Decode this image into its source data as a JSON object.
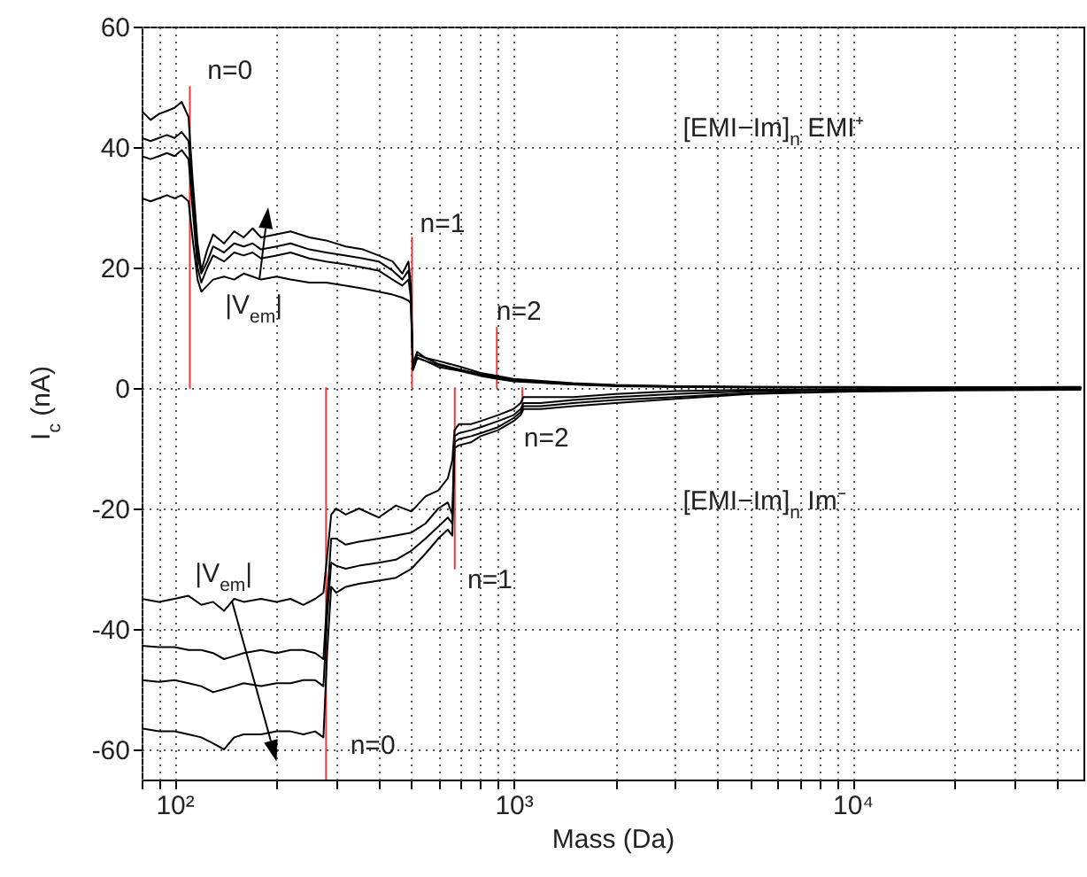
{
  "chart_data": {
    "type": "line",
    "xlabel": "Mass (Da)",
    "ylabel": "I$_{c}$ (nA)",
    "log": "x",
    "grid": true,
    "xlim": [
      80,
      48000
    ],
    "ylim": [
      -65,
      60
    ],
    "xticks": [
      {
        "value": 80,
        "label": null
      },
      {
        "value": 90,
        "label": null
      },
      {
        "value": 100,
        "label": "10²"
      },
      {
        "value": 200,
        "label": null
      },
      {
        "value": 300,
        "label": null
      },
      {
        "value": 400,
        "label": null
      },
      {
        "value": 500,
        "label": null
      },
      {
        "value": 600,
        "label": null
      },
      {
        "value": 700,
        "label": null
      },
      {
        "value": 800,
        "label": null
      },
      {
        "value": 900,
        "label": null
      },
      {
        "value": 1000,
        "label": "10³"
      },
      {
        "value": 2000,
        "label": null
      },
      {
        "value": 3000,
        "label": null
      },
      {
        "value": 4000,
        "label": null
      },
      {
        "value": 5000,
        "label": null
      },
      {
        "value": 6000,
        "label": null
      },
      {
        "value": 7000,
        "label": null
      },
      {
        "value": 8000,
        "label": null
      },
      {
        "value": 9000,
        "label": null
      },
      {
        "value": 10000,
        "label": "10⁴"
      },
      {
        "value": 20000,
        "label": null
      },
      {
        "value": 30000,
        "label": null
      },
      {
        "value": 40000,
        "label": null
      }
    ],
    "yticks": [
      -60,
      -40,
      -20,
      0,
      20,
      40,
      60
    ],
    "series": [
      {
        "color": "#f03a3a",
        "x": [
          111,
          111
        ],
        "values": [
          0,
          50
        ]
      },
      {
        "color": "#f03a3a",
        "x": [
          502,
          502
        ],
        "values": [
          0,
          25
        ]
      },
      {
        "color": "#f03a3a",
        "x": [
          893,
          893
        ],
        "values": [
          0,
          10
        ]
      },
      {
        "color": "#f03a3a",
        "x": [
          280,
          280
        ],
        "values": [
          0,
          -65
        ]
      },
      {
        "color": "#f03a3a",
        "x": [
          671,
          671
        ],
        "values": [
          0,
          -30
        ]
      },
      {
        "color": "#f03a3a",
        "x": [
          1062,
          1062
        ],
        "values": [
          0,
          -3.5
        ]
      },
      {
        "color": "#000000",
        "x": [
          80,
          85,
          90,
          95,
          100,
          105,
          110,
          113,
          117,
          120,
          125,
          130,
          140,
          150,
          160,
          170,
          180,
          200,
          220,
          250,
          280,
          320,
          360,
          400,
          440,
          470,
          490,
          498,
          505,
          520,
          550,
          600,
          700,
          800,
          900,
          1000,
          1500,
          2000,
          3000,
          5000,
          10000,
          20000,
          47000
        ],
        "values": [
          46,
          44.5,
          45.5,
          46,
          46.5,
          47.5,
          45,
          35,
          24,
          19.5,
          23,
          25.5,
          24,
          26,
          25,
          26.5,
          25,
          25.5,
          26,
          25,
          24.5,
          23.5,
          23,
          22,
          21,
          19,
          21,
          17,
          4,
          6,
          5,
          4.5,
          3.5,
          2.5,
          2,
          1.5,
          0.8,
          0.5,
          0.3,
          0.2,
          0.2,
          0.1,
          0.2
        ]
      },
      {
        "color": "#000000",
        "x": [
          80,
          85,
          90,
          95,
          100,
          105,
          110,
          113,
          117,
          120,
          125,
          130,
          140,
          150,
          160,
          170,
          180,
          200,
          220,
          250,
          280,
          320,
          360,
          400,
          440,
          470,
          490,
          498,
          505,
          520,
          550,
          600,
          700,
          800,
          900,
          1000,
          1500,
          2000,
          3000,
          5000,
          10000,
          20000,
          47000
        ],
        "values": [
          41.5,
          41,
          41.5,
          42,
          41.5,
          42.5,
          41,
          33,
          22,
          19,
          21,
          23.5,
          22.5,
          24,
          23.5,
          24,
          23,
          23.5,
          24,
          23,
          22.5,
          22,
          21.5,
          21,
          19.5,
          18,
          19.5,
          16,
          3.5,
          5.5,
          5,
          4,
          3,
          2.3,
          1.8,
          1.3,
          0.7,
          0.4,
          0.3,
          0.2,
          0.1,
          0.1,
          0.1
        ]
      },
      {
        "color": "#000000",
        "x": [
          80,
          85,
          90,
          95,
          100,
          105,
          110,
          113,
          117,
          120,
          125,
          130,
          140,
          150,
          160,
          170,
          180,
          200,
          220,
          250,
          280,
          320,
          360,
          400,
          440,
          470,
          490,
          498,
          505,
          520,
          550,
          600,
          700,
          800,
          900,
          1000,
          1500,
          2000,
          3000,
          5000,
          10000,
          20000,
          47000
        ],
        "values": [
          38.5,
          38,
          38.5,
          39,
          38.5,
          39.5,
          38,
          30,
          20,
          17.5,
          20,
          22,
          21,
          22.5,
          22,
          22.5,
          21.5,
          22,
          22.5,
          21.5,
          21,
          20.5,
          20,
          19.5,
          18,
          17,
          18,
          15,
          3,
          5,
          4.5,
          3.8,
          3,
          2.2,
          1.6,
          1.2,
          0.6,
          0.4,
          0.2,
          0.1,
          0.1,
          0,
          0.1
        ]
      },
      {
        "color": "#000000",
        "x": [
          80,
          85,
          90,
          95,
          100,
          105,
          110,
          113,
          117,
          120,
          125,
          130,
          140,
          150,
          160,
          170,
          180,
          200,
          220,
          250,
          280,
          320,
          360,
          400,
          440,
          470,
          490,
          498,
          505,
          520,
          550,
          600,
          700,
          800,
          900,
          1000,
          1500,
          2000,
          3000,
          5000,
          10000,
          20000,
          47000
        ],
        "values": [
          31.5,
          31,
          31.5,
          32,
          31.5,
          32,
          31,
          25,
          18,
          16,
          17,
          18,
          18.5,
          18,
          19,
          18.5,
          18,
          18.5,
          18,
          17.5,
          17.5,
          17,
          16.5,
          16,
          15.5,
          15,
          14.5,
          14,
          3,
          5,
          4.5,
          3.5,
          2.8,
          2,
          1.5,
          1.1,
          0.6,
          0.3,
          0.2,
          0.1,
          0.1,
          0,
          0
        ]
      },
      {
        "color": "#000000",
        "x": [
          80,
          90,
          100,
          110,
          120,
          130,
          140,
          150,
          160,
          180,
          200,
          220,
          240,
          260,
          275,
          282,
          290,
          300,
          320,
          350,
          400,
          450,
          500,
          550,
          600,
          640,
          660,
          670,
          690,
          750,
          800,
          900,
          1000,
          1050,
          1070,
          1200,
          1500,
          2000,
          3000,
          5000,
          10000,
          20000,
          47000
        ],
        "values": [
          -35,
          -35.5,
          -35,
          -34.5,
          -36,
          -35.5,
          -37,
          -35,
          -35.5,
          -35,
          -35.5,
          -35,
          -36,
          -35,
          -34,
          -28,
          -21,
          -20,
          -21,
          -20,
          -21.5,
          -19.5,
          -20.5,
          -18,
          -17,
          -15,
          -12,
          -7,
          -6,
          -6,
          -5.5,
          -4.5,
          -3.5,
          -2.5,
          -1.5,
          -1.5,
          -1.5,
          -1,
          -0.5,
          -0.3,
          -0.2,
          -0.1,
          0
        ]
      },
      {
        "color": "#000000",
        "x": [
          80,
          90,
          100,
          110,
          120,
          130,
          140,
          150,
          160,
          180,
          200,
          220,
          240,
          260,
          275,
          282,
          290,
          300,
          320,
          350,
          400,
          450,
          500,
          550,
          600,
          640,
          660,
          670,
          690,
          750,
          800,
          900,
          1000,
          1050,
          1070,
          1200,
          1500,
          2000,
          3000,
          5000,
          10000,
          20000,
          47000
        ],
        "values": [
          -42.8,
          -43,
          -43,
          -43.5,
          -43.5,
          -44,
          -45,
          -44.5,
          -44,
          -43.5,
          -44,
          -43.5,
          -43.5,
          -44,
          -45,
          -35,
          -25,
          -25,
          -26,
          -25.5,
          -25,
          -24.5,
          -24,
          -22.5,
          -20,
          -19,
          -21,
          -8,
          -7.5,
          -7,
          -6.5,
          -5.5,
          -4.5,
          -3.5,
          -2.5,
          -2.5,
          -2,
          -1.5,
          -1,
          -0.5,
          -0.3,
          -0.2,
          -0.1
        ]
      },
      {
        "color": "#000000",
        "x": [
          80,
          90,
          100,
          110,
          120,
          130,
          140,
          150,
          160,
          180,
          200,
          220,
          240,
          260,
          275,
          282,
          290,
          300,
          320,
          350,
          400,
          450,
          500,
          550,
          600,
          640,
          660,
          670,
          690,
          750,
          800,
          900,
          1000,
          1050,
          1070,
          1200,
          1500,
          2000,
          3000,
          5000,
          10000,
          20000,
          47000
        ],
        "values": [
          -48.5,
          -48.8,
          -48.5,
          -49,
          -49.5,
          -50.5,
          -50,
          -49.5,
          -49,
          -49.5,
          -49,
          -49,
          -48.5,
          -48.5,
          -49.5,
          -38,
          -29,
          -29.5,
          -30,
          -29.5,
          -29,
          -28.5,
          -27,
          -25,
          -23,
          -21.5,
          -22.5,
          -9,
          -8.5,
          -8,
          -7.5,
          -6.5,
          -5,
          -4,
          -3,
          -3,
          -2.5,
          -2,
          -1.5,
          -0.8,
          -0.5,
          -0.3,
          -0.2
        ]
      },
      {
        "color": "#000000",
        "x": [
          80,
          90,
          100,
          110,
          120,
          130,
          140,
          150,
          160,
          180,
          200,
          220,
          240,
          260,
          275,
          282,
          290,
          300,
          320,
          350,
          400,
          450,
          500,
          550,
          600,
          640,
          660,
          670,
          690,
          750,
          800,
          900,
          1000,
          1050,
          1070,
          1200,
          1500,
          2000,
          3000,
          5000,
          10000,
          20000,
          47000
        ],
        "values": [
          -56.5,
          -57,
          -57,
          -57.5,
          -58,
          -59,
          -60,
          -58,
          -57.5,
          -57.5,
          -57,
          -57,
          -57.5,
          -57,
          -58,
          -44,
          -33,
          -34,
          -33,
          -32.5,
          -32,
          -31.5,
          -30,
          -27.5,
          -25,
          -23.5,
          -24.5,
          -10,
          -9.5,
          -9,
          -8,
          -7,
          -5.5,
          -4.5,
          -3.5,
          -3.5,
          -3,
          -2.5,
          -1.8,
          -1,
          -0.6,
          -0.4,
          -0.3
        ]
      }
    ],
    "annotations": [
      "n=0",
      "n=1",
      "n=2",
      "n=0",
      "n=1",
      "n=2",
      "|V$_{em}$|",
      "|V$_{em}$|",
      "[EMI−Im]$_{n}$ EMI⁺",
      "[EMI−Im]$_{n}$ Im⁻"
    ]
  }
}
